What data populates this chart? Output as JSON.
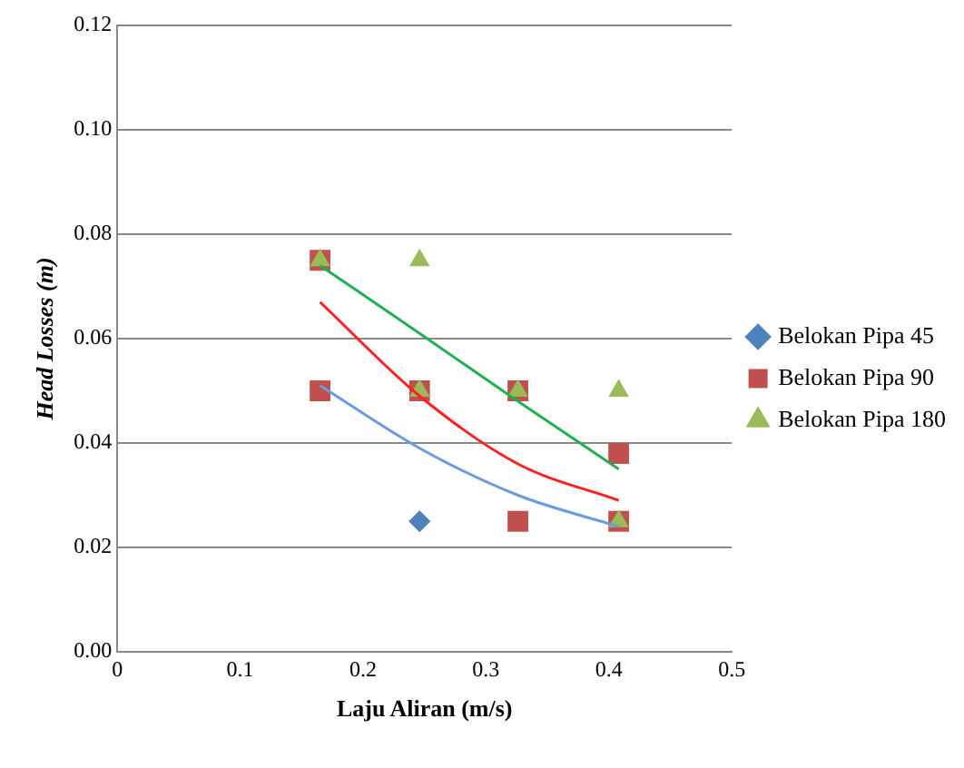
{
  "chart_data": {
    "type": "scatter",
    "xlabel": "Laju Aliran (m/s)",
    "ylabel": "Head Losses (m)",
    "xlim": [
      0,
      0.5
    ],
    "xticks": [
      0,
      0.1,
      0.2,
      0.3,
      0.4,
      0.5
    ],
    "ylim": [
      0,
      0.12
    ],
    "yticks": [
      {
        "value": 0,
        "label": "0.00"
      },
      {
        "value": 0.02,
        "label": "0.02"
      },
      {
        "value": 0.04,
        "label": "0.04"
      },
      {
        "value": 0.06,
        "label": "0.06"
      },
      {
        "value": 0.08,
        "label": "0.08"
      },
      {
        "value": 0.1,
        "label": "0.10"
      },
      {
        "value": 0.12,
        "label": "0.12"
      }
    ],
    "grid": "y",
    "legend": "right",
    "series": [
      {
        "name": "Belokan Pipa 45",
        "color": "#4f81bd",
        "marker": "diamond",
        "x": [
          0.246
        ],
        "values": [
          0.025
        ]
      },
      {
        "name": "Belokan Pipa 90",
        "color": "#c0504d",
        "marker": "square",
        "x": [
          0.165,
          0.165,
          0.246,
          0.326,
          0.326,
          0.408,
          0.408
        ],
        "values": [
          0.075,
          0.05,
          0.05,
          0.05,
          0.025,
          0.038,
          0.025
        ]
      },
      {
        "name": "Belokan Pipa 180",
        "color": "#9bbb59",
        "marker": "triangle",
        "x": [
          0.165,
          0.246,
          0.246,
          0.326,
          0.408,
          0.408
        ],
        "values": [
          0.075,
          0.075,
          0.05,
          0.05,
          0.05,
          0.025
        ]
      },
      {
        "type": "line",
        "color": "#6a9be0",
        "marker": "none",
        "x": [
          0.165,
          0.246,
          0.326,
          0.408
        ],
        "values": [
          0.051,
          0.039,
          0.03,
          0.024
        ]
      },
      {
        "type": "line",
        "color": "#ff2020",
        "marker": "none",
        "x": [
          0.165,
          0.246,
          0.326,
          0.408
        ],
        "values": [
          0.067,
          0.049,
          0.036,
          0.029
        ]
      },
      {
        "type": "line",
        "color": "#20b050",
        "marker": "none",
        "x": [
          0.165,
          0.246,
          0.326,
          0.408
        ],
        "values": [
          0.074,
          0.061,
          0.048,
          0.035
        ]
      }
    ]
  }
}
